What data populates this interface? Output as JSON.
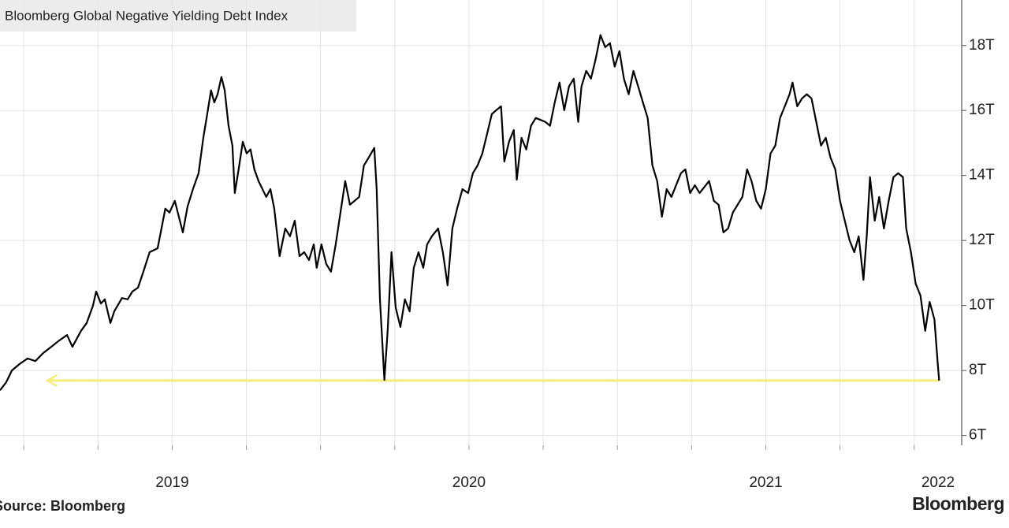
{
  "chart_data": {
    "type": "line",
    "title": "Bloomberg Global Negative Yielding Debt Index",
    "source": "Source: Bloomberg",
    "logo": "Bloomberg",
    "color": "#000000",
    "xlim": [
      2018.92,
      2022.16
    ],
    "ylim": [
      5.7,
      19.4
    ],
    "xticks": [
      {
        "value": 2019.5,
        "label": "2019"
      },
      {
        "value": 2020.5,
        "label": "2020"
      },
      {
        "value": 2021.5,
        "label": "2021"
      },
      {
        "value": 2022.5,
        "label": "2022"
      }
    ],
    "xgridlines": [
      2019,
      2019.25,
      2019.5,
      2019.75,
      2020,
      2020.25,
      2020.5,
      2020.75,
      2021,
      2021.25,
      2021.5,
      2021.75,
      2022
    ],
    "yticks": [
      {
        "value": 6,
        "label": "6T"
      },
      {
        "value": 8,
        "label": "8T"
      },
      {
        "value": 10,
        "label": "10T"
      },
      {
        "value": 12,
        "label": "12T"
      },
      {
        "value": 14,
        "label": "14T"
      },
      {
        "value": 16,
        "label": "16T"
      },
      {
        "value": 18,
        "label": "18T"
      }
    ],
    "grid": true,
    "reference_line": {
      "y": 7.69,
      "x": [
        2019.08,
        2022.084
      ],
      "color": "#f3ee74"
    },
    "x": [
      2018.92,
      2018.941,
      2018.96,
      2018.986,
      2019.013,
      2019.039,
      2019.066,
      2019.093,
      2019.119,
      2019.146,
      2019.164,
      2019.193,
      2019.212,
      2019.233,
      2019.244,
      2019.26,
      2019.273,
      2019.292,
      2019.305,
      2019.331,
      2019.35,
      2019.366,
      2019.385,
      2019.403,
      2019.424,
      2019.451,
      2019.464,
      2019.477,
      2019.491,
      2019.509,
      2019.536,
      2019.552,
      2019.57,
      2019.589,
      2019.605,
      2019.616,
      2019.631,
      2019.642,
      2019.653,
      2019.666,
      2019.677,
      2019.69,
      2019.703,
      2019.711,
      2019.724,
      2019.738,
      2019.751,
      2019.764,
      2019.777,
      2019.791,
      2019.817,
      2019.831,
      2019.844,
      2019.862,
      2019.881,
      2019.897,
      2019.913,
      2019.929,
      2019.945,
      2019.961,
      2019.977,
      2019.987,
      2020.003,
      2020.019,
      2020.035,
      2020.051,
      2020.067,
      2020.083,
      2020.099,
      2020.13,
      2020.146,
      2020.162,
      2020.181,
      2020.189,
      2020.2,
      2020.215,
      2020.226,
      2020.239,
      2020.253,
      2020.269,
      2020.284,
      2020.3,
      2020.314,
      2020.33,
      2020.346,
      2020.359,
      2020.375,
      2020.396,
      2020.412,
      2020.428,
      2020.444,
      2020.46,
      2020.478,
      2020.497,
      2020.513,
      2020.529,
      2020.545,
      2020.561,
      2020.577,
      2020.592,
      2020.608,
      2020.619,
      2020.635,
      2020.651,
      2020.661,
      2020.677,
      2020.693,
      2020.709,
      2020.725,
      2020.757,
      2020.773,
      2020.789,
      2020.805,
      2020.821,
      2020.837,
      2020.853,
      2020.868,
      2020.879,
      2020.895,
      2020.911,
      2020.927,
      2020.943,
      2020.959,
      2020.975,
      2020.991,
      2021.007,
      2021.022,
      2021.038,
      2021.054,
      2021.07,
      2021.086,
      2021.102,
      2021.118,
      2021.134,
      2021.15,
      2021.166,
      2021.182,
      2021.214,
      2021.229,
      2021.245,
      2021.261,
      2021.277,
      2021.309,
      2021.325,
      2021.341,
      2021.357,
      2021.373,
      2021.389,
      2021.421,
      2021.437,
      2021.452,
      2021.468,
      2021.484,
      2021.5,
      2021.516,
      2021.532,
      2021.548,
      2021.564,
      2021.58,
      2021.59,
      2021.606,
      2021.622,
      2021.638,
      2021.654,
      2021.67,
      2021.686,
      2021.702,
      2021.718,
      2021.734,
      2021.75,
      2021.766,
      2021.782,
      2021.798,
      2021.813,
      2021.829,
      2021.84,
      2021.851,
      2021.867,
      2021.882,
      2021.898,
      2021.914,
      2021.93,
      2021.946,
      2021.962,
      2021.973,
      2021.989,
      2022.005,
      2022.021,
      2022.037,
      2022.052,
      2022.068,
      2022.079,
      2022.084
    ],
    "values": [
      7.39,
      7.64,
      8.0,
      8.2,
      8.37,
      8.29,
      8.54,
      8.73,
      8.92,
      9.09,
      8.73,
      9.22,
      9.46,
      9.99,
      10.43,
      10.06,
      10.19,
      9.46,
      9.82,
      10.23,
      10.19,
      10.43,
      10.55,
      11.04,
      11.64,
      11.76,
      12.37,
      12.98,
      12.86,
      13.22,
      12.25,
      13.05,
      13.58,
      14.07,
      15.16,
      15.77,
      16.62,
      16.25,
      16.5,
      17.03,
      16.62,
      15.53,
      14.92,
      13.46,
      14.19,
      15.04,
      14.68,
      14.8,
      14.19,
      13.83,
      13.34,
      13.58,
      12.98,
      11.52,
      12.37,
      12.13,
      12.61,
      11.52,
      11.64,
      11.4,
      11.88,
      11.16,
      11.88,
      11.28,
      11.04,
      11.88,
      12.86,
      13.83,
      13.1,
      13.34,
      14.31,
      14.55,
      14.85,
      13.58,
      10.19,
      7.71,
      9.22,
      11.64,
      9.94,
      9.34,
      10.19,
      9.82,
      11.16,
      11.64,
      11.16,
      11.88,
      12.13,
      12.37,
      11.64,
      10.62,
      12.37,
      12.98,
      13.58,
      13.46,
      14.07,
      14.31,
      14.68,
      15.28,
      15.89,
      16.01,
      16.13,
      14.43,
      15.04,
      15.4,
      13.87,
      15.16,
      14.8,
      15.53,
      15.77,
      15.65,
      15.53,
      16.25,
      16.86,
      16.01,
      16.74,
      16.98,
      15.65,
      16.74,
      17.22,
      16.98,
      17.59,
      18.32,
      17.95,
      18.07,
      17.35,
      17.83,
      16.98,
      16.5,
      17.22,
      16.74,
      16.25,
      15.77,
      14.31,
      13.83,
      12.73,
      13.58,
      13.34,
      14.07,
      14.19,
      13.46,
      13.7,
      13.46,
      13.83,
      13.22,
      13.1,
      12.25,
      12.37,
      12.86,
      13.34,
      14.19,
      13.83,
      13.22,
      12.98,
      13.58,
      14.68,
      14.92,
      15.77,
      16.13,
      16.5,
      16.86,
      16.13,
      16.37,
      16.5,
      16.37,
      15.65,
      14.92,
      15.16,
      14.55,
      14.19,
      13.22,
      12.61,
      12.01,
      11.64,
      12.13,
      10.79,
      12.13,
      13.95,
      12.61,
      13.34,
      12.37,
      13.22,
      13.95,
      14.07,
      13.95,
      12.37,
      11.64,
      10.67,
      10.31,
      9.22,
      10.11,
      9.58,
      8.24,
      7.69
    ]
  }
}
